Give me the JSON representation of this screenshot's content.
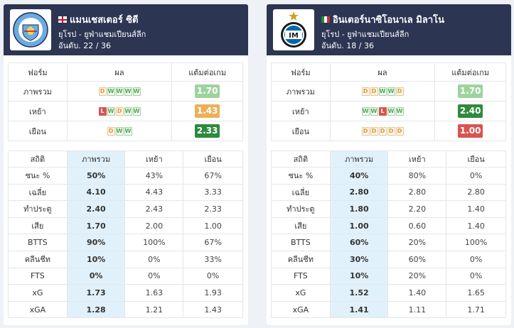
{
  "teams": [
    {
      "name": "แมนเชสเตอร์ ซิตี",
      "flag": "england",
      "logo": "manchester-city-crest",
      "league": "ยุโรป - ยูฟ่าแชมเปียนส์ลีก",
      "rank": "อันดับ. 22 / 36",
      "form_headers": [
        "ฟอร์ม",
        "ผล",
        "แต้มต่อเกม"
      ],
      "form": [
        {
          "label": "ภาพรวม",
          "results": [
            "D",
            "W",
            "W",
            "W",
            "W"
          ],
          "ppg": "1.70",
          "ppg_color": "#9ed39e"
        },
        {
          "label": "เหย้า",
          "results": [
            "L",
            "W",
            "D",
            "W",
            "W"
          ],
          "ppg": "1.43",
          "ppg_color": "#ecb05a"
        },
        {
          "label": "เยือน",
          "results": [
            "D",
            "W",
            "W"
          ],
          "ppg": "2.33",
          "ppg_color": "#2e8a3c"
        }
      ],
      "stats_headers": [
        "สถิติ",
        "ภาพรวม",
        "เหย้า",
        "เยือน"
      ],
      "stats": [
        {
          "label": "ชนะ %",
          "overall": "50%",
          "home": "43%",
          "away": "67%"
        },
        {
          "label": "เฉลี่ย",
          "overall": "4.10",
          "home": "4.43",
          "away": "3.33"
        },
        {
          "label": "ทำประตู",
          "overall": "2.40",
          "home": "2.43",
          "away": "2.33"
        },
        {
          "label": "เสีย",
          "overall": "1.70",
          "home": "2.00",
          "away": "1.00"
        },
        {
          "label": "BTTS",
          "overall": "90%",
          "home": "100%",
          "away": "67%"
        },
        {
          "label": "คลีนชีท",
          "overall": "10%",
          "home": "0%",
          "away": "33%"
        },
        {
          "label": "FTS",
          "overall": "0%",
          "home": "0%",
          "away": "0%"
        },
        {
          "label": "xG",
          "overall": "1.73",
          "home": "1.63",
          "away": "1.93"
        },
        {
          "label": "xGA",
          "overall": "1.28",
          "home": "1.21",
          "away": "1.43"
        }
      ]
    },
    {
      "name": "อินเตอร์นาซิโอนาเล มิลาโน",
      "flag": "italy",
      "logo": "inter-milan-crest",
      "league": "ยุโรป - ยูฟ่าแชมเปียนส์ลีก",
      "rank": "อันดับ. 18 / 36",
      "form_headers": [
        "ฟอร์ม",
        "ผล",
        "แต้มต่อเกม"
      ],
      "form": [
        {
          "label": "ภาพรวม",
          "results": [
            "D",
            "D",
            "W",
            "W",
            "D"
          ],
          "ppg": "1.70",
          "ppg_color": "#9ed39e"
        },
        {
          "label": "เหย้า",
          "results": [
            "W",
            "W",
            "L",
            "W",
            "W"
          ],
          "ppg": "2.40",
          "ppg_color": "#2e8a3c"
        },
        {
          "label": "เยือน",
          "results": [
            "D",
            "D",
            "D",
            "D",
            "D"
          ],
          "ppg": "1.00",
          "ppg_color": "#d9534f"
        }
      ],
      "stats_headers": [
        "สถิติ",
        "ภาพรวม",
        "เหย้า",
        "เยือน"
      ],
      "stats": [
        {
          "label": "ชนะ %",
          "overall": "40%",
          "home": "80%",
          "away": "0%"
        },
        {
          "label": "เฉลี่ย",
          "overall": "2.80",
          "home": "2.80",
          "away": "2.80"
        },
        {
          "label": "ทำประตู",
          "overall": "1.80",
          "home": "2.20",
          "away": "1.40"
        },
        {
          "label": "เสีย",
          "overall": "1.00",
          "home": "0.60",
          "away": "1.40"
        },
        {
          "label": "BTTS",
          "overall": "60%",
          "home": "20%",
          "away": "100%"
        },
        {
          "label": "คลีนชีท",
          "overall": "30%",
          "home": "60%",
          "away": "0%"
        },
        {
          "label": "FTS",
          "overall": "10%",
          "home": "20%",
          "away": "0%"
        },
        {
          "label": "xG",
          "overall": "1.52",
          "home": "1.40",
          "away": "1.65"
        },
        {
          "label": "xGA",
          "overall": "1.41",
          "home": "1.11",
          "away": "1.71"
        }
      ]
    }
  ]
}
